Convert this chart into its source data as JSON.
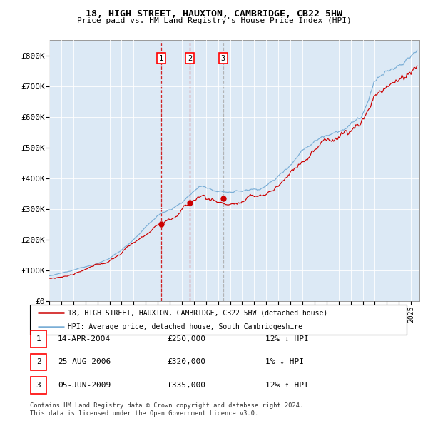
{
  "title1": "18, HIGH STREET, HAUXTON, CAMBRIDGE, CB22 5HW",
  "title2": "Price paid vs. HM Land Registry's House Price Index (HPI)",
  "legend_red": "18, HIGH STREET, HAUXTON, CAMBRIDGE, CB22 5HW (detached house)",
  "legend_blue": "HPI: Average price, detached house, South Cambridgeshire",
  "transactions": [
    {
      "num": 1,
      "date": "14-APR-2004",
      "price": 250000,
      "price_str": "£250,000",
      "rel": "12% ↓ HPI",
      "date_dec": 2004.28
    },
    {
      "num": 2,
      "date": "25-AUG-2006",
      "price": 320000,
      "price_str": "£320,000",
      "rel": "1% ↓ HPI",
      "date_dec": 2006.65
    },
    {
      "num": 3,
      "date": "05-JUN-2009",
      "price": 335000,
      "price_str": "£335,000",
      "rel": "12% ↑ HPI",
      "date_dec": 2009.43
    }
  ],
  "footnote1": "Contains HM Land Registry data © Crown copyright and database right 2024.",
  "footnote2": "This data is licensed under the Open Government Licence v3.0.",
  "plot_bg": "#dce9f5",
  "red_color": "#cc0000",
  "blue_color": "#7aaed6",
  "ylim": [
    0,
    850000
  ],
  "xstart": 1995.0,
  "xend": 2025.7,
  "yticks": [
    0,
    100000,
    200000,
    300000,
    400000,
    500000,
    600000,
    700000,
    800000
  ],
  "ytick_labels": [
    "£0",
    "£100K",
    "£200K",
    "£300K",
    "£400K",
    "£500K",
    "£600K",
    "£700K",
    "£800K"
  ]
}
